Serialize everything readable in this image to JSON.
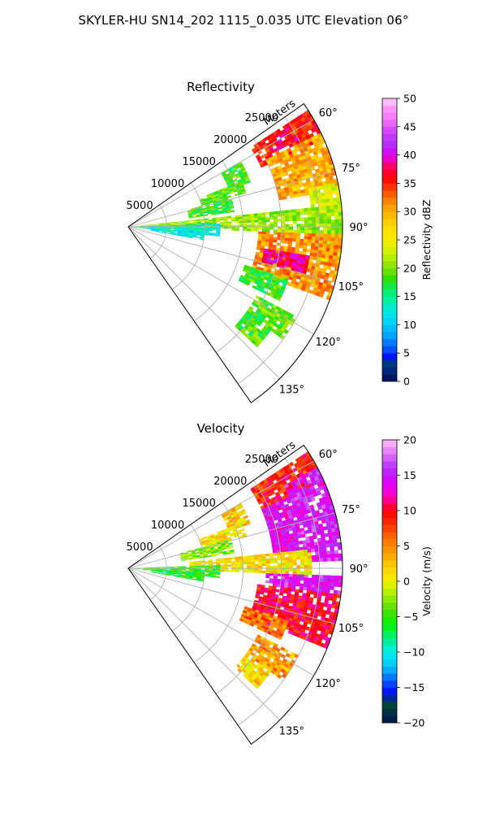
{
  "figure": {
    "suptitle": "SKYLER-HU  SN14_202  1115_0.035 UTC Elevation 06°"
  },
  "chart_data": [
    {
      "type": "heatmap",
      "title": "Reflectivity",
      "range_axis_label": "Meters",
      "range_ticks": [
        "5000",
        "10000",
        "15000",
        "20000",
        "25000"
      ],
      "range_values": [
        5000,
        10000,
        15000,
        20000,
        25000
      ],
      "range_max": 28000,
      "azimuth_ticks": [
        "60°",
        "75°",
        "90°",
        "105°",
        "120°",
        "135°"
      ],
      "azimuth_values": [
        60,
        75,
        90,
        105,
        120,
        135
      ],
      "azimuth_range": [
        55,
        145
      ],
      "grid": true,
      "colorbar": {
        "label": "Reflectivity dBZ",
        "range": [
          0,
          50
        ],
        "ticks": [
          "0",
          "5",
          "10",
          "15",
          "20",
          "25",
          "30",
          "35",
          "40",
          "45",
          "50"
        ],
        "tick_values": [
          0,
          5,
          10,
          15,
          20,
          25,
          30,
          35,
          40,
          45,
          50
        ]
      },
      "echo_regions": [
        {
          "az": [
            57,
            66
          ],
          "r": [
            19000,
            28000
          ],
          "value": 35
        },
        {
          "az": [
            64,
            80
          ],
          "r": [
            20000,
            28000
          ],
          "value": 30
        },
        {
          "az": [
            78,
            100
          ],
          "r": [
            24000,
            28000
          ],
          "value": 24
        },
        {
          "az": [
            92,
            110
          ],
          "r": [
            17000,
            28000
          ],
          "value": 31
        },
        {
          "az": [
            99,
            105
          ],
          "r": [
            18000,
            24000
          ],
          "value": 38
        },
        {
          "az": [
            58,
            63
          ],
          "r": [
            21000,
            25000
          ],
          "value": 37
        },
        {
          "az": [
            68,
            74
          ],
          "r": [
            10000,
            16000
          ],
          "value": 19
        },
        {
          "az": [
            84,
            92
          ],
          "r": [
            1000,
            28000
          ],
          "value": 21
        },
        {
          "az": [
            88,
            96
          ],
          "r": [
            500,
            12000
          ],
          "value": 13
        },
        {
          "az": [
            93,
            100
          ],
          "r": [
            3000,
            10000
          ],
          "value": 12
        },
        {
          "az": [
            74,
            82
          ],
          "r": [
            8000,
            14000
          ],
          "value": 18
        },
        {
          "az": [
            108,
            116
          ],
          "r": [
            16000,
            22000
          ],
          "value": 18
        },
        {
          "az": [
            118,
            126
          ],
          "r": [
            19000,
            25000
          ],
          "value": 19
        },
        {
          "az": [
            126,
            133
          ],
          "r": [
            19000,
            23000
          ],
          "value": 19
        },
        {
          "az": [
            60,
            70
          ],
          "r": [
            14000,
            17000
          ],
          "value": 18
        }
      ]
    },
    {
      "type": "heatmap",
      "title": "Velocity",
      "range_axis_label": "Meters",
      "range_ticks": [
        "5000",
        "10000",
        "15000",
        "20000",
        "25000"
      ],
      "range_values": [
        5000,
        10000,
        15000,
        20000,
        25000
      ],
      "range_max": 28000,
      "azimuth_ticks": [
        "60°",
        "75°",
        "90°",
        "105°",
        "120°",
        "135°"
      ],
      "azimuth_values": [
        60,
        75,
        90,
        105,
        120,
        135
      ],
      "azimuth_range": [
        55,
        145
      ],
      "grid": true,
      "colorbar": {
        "label": "Velocity (m/s)",
        "range": [
          -20,
          20
        ],
        "ticks": [
          "−20",
          "−15",
          "−10",
          "−5",
          "0",
          "5",
          "10",
          "15",
          "20"
        ],
        "tick_values": [
          -20,
          -15,
          -10,
          -5,
          0,
          5,
          10,
          15,
          20
        ]
      },
      "echo_regions": [
        {
          "az": [
            57,
            67
          ],
          "r": [
            19000,
            28000
          ],
          "value": 9
        },
        {
          "az": [
            62,
            88
          ],
          "r": [
            23000,
            28000
          ],
          "value": 15
        },
        {
          "az": [
            66,
            84
          ],
          "r": [
            19000,
            23000
          ],
          "value": 14
        },
        {
          "az": [
            92,
            97
          ],
          "r": [
            18000,
            28000
          ],
          "value": 15
        },
        {
          "az": [
            97,
            112
          ],
          "r": [
            17000,
            28000
          ],
          "value": 10
        },
        {
          "az": [
            68,
            75
          ],
          "r": [
            10000,
            16000
          ],
          "value": 1
        },
        {
          "az": [
            84,
            92
          ],
          "r": [
            8000,
            24000
          ],
          "value": 1
        },
        {
          "az": [
            88,
            96
          ],
          "r": [
            500,
            12000
          ],
          "value": -5
        },
        {
          "az": [
            92,
            100
          ],
          "r": [
            3000,
            10000
          ],
          "value": -6
        },
        {
          "az": [
            74,
            82
          ],
          "r": [
            7000,
            14000
          ],
          "value": -3
        },
        {
          "az": [
            108,
            115
          ],
          "r": [
            16000,
            22000
          ],
          "value": 6
        },
        {
          "az": [
            117,
            126
          ],
          "r": [
            19000,
            25000
          ],
          "value": 4
        },
        {
          "az": [
            126,
            133
          ],
          "r": [
            19000,
            23000
          ],
          "value": 2
        },
        {
          "az": [
            60,
            70
          ],
          "r": [
            14000,
            17000
          ],
          "value": 2
        }
      ]
    }
  ]
}
